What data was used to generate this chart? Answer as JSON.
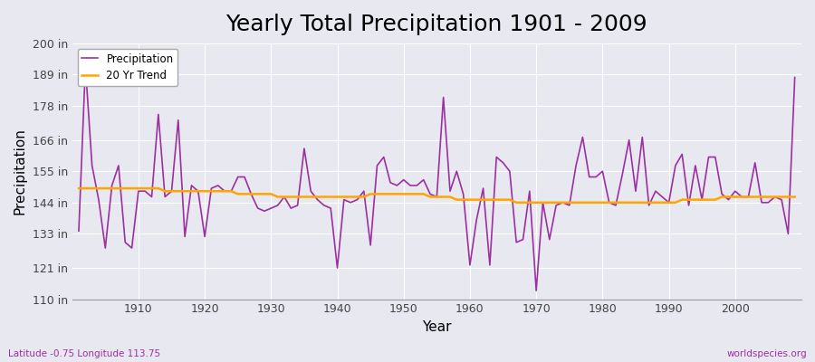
{
  "title": "Yearly Total Precipitation 1901 - 2009",
  "xlabel": "Year",
  "ylabel": "Precipitation",
  "subtitle": "Latitude -0.75 Longitude 113.75",
  "watermark": "worldspecies.org",
  "years": [
    1901,
    1902,
    1903,
    1904,
    1905,
    1906,
    1907,
    1908,
    1909,
    1910,
    1911,
    1912,
    1913,
    1914,
    1915,
    1916,
    1917,
    1918,
    1919,
    1920,
    1921,
    1922,
    1923,
    1924,
    1925,
    1926,
    1927,
    1928,
    1929,
    1930,
    1931,
    1932,
    1933,
    1934,
    1935,
    1936,
    1937,
    1938,
    1939,
    1940,
    1941,
    1942,
    1943,
    1944,
    1945,
    1946,
    1947,
    1948,
    1949,
    1950,
    1951,
    1952,
    1953,
    1954,
    1955,
    1956,
    1957,
    1958,
    1959,
    1960,
    1961,
    1962,
    1963,
    1964,
    1965,
    1966,
    1967,
    1968,
    1969,
    1970,
    1971,
    1972,
    1973,
    1974,
    1975,
    1976,
    1977,
    1978,
    1979,
    1980,
    1981,
    1982,
    1983,
    1984,
    1985,
    1986,
    1987,
    1988,
    1989,
    1990,
    1991,
    1992,
    1993,
    1994,
    1995,
    1996,
    1997,
    1998,
    1999,
    2000,
    2001,
    2002,
    2003,
    2004,
    2005,
    2006,
    2007,
    2008,
    2009
  ],
  "precipitation": [
    134,
    192,
    157,
    145,
    128,
    150,
    157,
    130,
    128,
    148,
    148,
    146,
    175,
    146,
    148,
    173,
    132,
    150,
    148,
    132,
    149,
    150,
    148,
    148,
    153,
    153,
    147,
    142,
    141,
    142,
    143,
    146,
    142,
    143,
    163,
    148,
    145,
    143,
    142,
    121,
    145,
    144,
    145,
    148,
    129,
    157,
    160,
    151,
    150,
    152,
    150,
    150,
    152,
    147,
    146,
    181,
    148,
    155,
    147,
    122,
    138,
    149,
    122,
    160,
    158,
    155,
    130,
    131,
    148,
    113,
    144,
    131,
    143,
    144,
    143,
    157,
    167,
    153,
    153,
    155,
    144,
    143,
    154,
    166,
    148,
    167,
    143,
    148,
    146,
    144,
    157,
    161,
    143,
    157,
    145,
    160,
    160,
    147,
    145,
    148,
    146,
    146,
    158,
    144,
    144,
    146,
    145,
    133,
    188
  ],
  "trend": [
    149,
    149,
    149,
    149,
    149,
    149,
    149,
    149,
    149,
    149,
    149,
    149,
    149,
    148,
    148,
    148,
    148,
    148,
    148,
    148,
    148,
    148,
    148,
    148,
    147,
    147,
    147,
    147,
    147,
    147,
    146,
    146,
    146,
    146,
    146,
    146,
    146,
    146,
    146,
    146,
    146,
    146,
    146,
    146,
    147,
    147,
    147,
    147,
    147,
    147,
    147,
    147,
    147,
    146,
    146,
    146,
    146,
    145,
    145,
    145,
    145,
    145,
    145,
    145,
    145,
    145,
    144,
    144,
    144,
    144,
    144,
    144,
    144,
    144,
    144,
    144,
    144,
    144,
    144,
    144,
    144,
    144,
    144,
    144,
    144,
    144,
    144,
    144,
    144,
    144,
    144,
    145,
    145,
    145,
    145,
    145,
    145,
    146,
    146,
    146,
    146,
    146,
    146,
    146,
    146,
    146,
    146,
    146,
    146
  ],
  "precip_color": "#9B30A0",
  "trend_color": "#FFA500",
  "bg_color": "#E8E8F0",
  "plot_bg_color": "#E8E8F0",
  "ylim": [
    110,
    200
  ],
  "yticks": [
    110,
    121,
    133,
    144,
    155,
    166,
    178,
    189,
    200
  ],
  "ytick_labels": [
    "110 in",
    "121 in",
    "133 in",
    "144 in",
    "155 in",
    "166 in",
    "178 in",
    "189 in",
    "200 in"
  ],
  "xtick_start": 1910,
  "xtick_step": 10,
  "title_fontsize": 18,
  "axis_label_fontsize": 11,
  "tick_fontsize": 9
}
